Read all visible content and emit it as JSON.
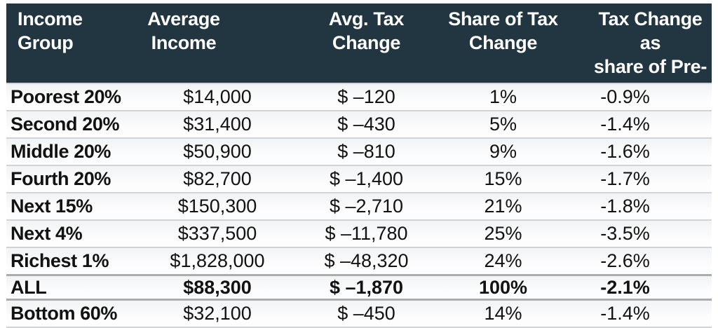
{
  "colors": {
    "header_bg": "#213640",
    "header_text": "#ffffff",
    "row_text": "#121212",
    "separator": "#d2d3d5",
    "strong_separator": "#aaacaf"
  },
  "chart_data": {
    "type": "table",
    "columns": [
      "Income Group",
      "Average Income",
      "Avg. Tax Change",
      "Share of Tax Change",
      "Tax Change as share of Pre-"
    ],
    "header_lines": [
      [
        "Income",
        "Group"
      ],
      [
        "Average",
        "Income"
      ],
      [
        "Avg. Tax",
        "Change"
      ],
      [
        "Share of Tax",
        "Change"
      ],
      [
        "Tax Change as",
        "share of Pre-"
      ]
    ],
    "rows": [
      [
        "Poorest 20%",
        "$14,000",
        "$ –120",
        "1%",
        "-0.9%"
      ],
      [
        "Second 20%",
        "$31,400",
        "$ –430",
        "5%",
        "-1.4%"
      ],
      [
        "Middle 20%",
        "$50,900",
        "$ –810",
        "9%",
        "-1.6%"
      ],
      [
        "Fourth 20%",
        "$82,700",
        "$ –1,400",
        "15%",
        "-1.7%"
      ],
      [
        "Next 15%",
        "$150,300",
        "$ –2,710",
        "21%",
        "-1.8%"
      ],
      [
        "Next 4%",
        "$337,500",
        "$ –11,780",
        "25%",
        "-3.5%"
      ],
      [
        "Richest 1%",
        "$1,828,000",
        "$ –48,320",
        "24%",
        "-2.6%"
      ],
      [
        "ALL",
        "$88,300",
        "$ –1,870",
        "100%",
        "-2.1%"
      ],
      [
        "Bottom 60%",
        "$32,100",
        "$ –450",
        "14%",
        "-1.4%"
      ]
    ],
    "emphasis_row_index": 7,
    "column_keys": [
      "income-group",
      "average-income",
      "avg-tax-change",
      "share-of-tax-change",
      "tax-change-share-pretax"
    ]
  }
}
